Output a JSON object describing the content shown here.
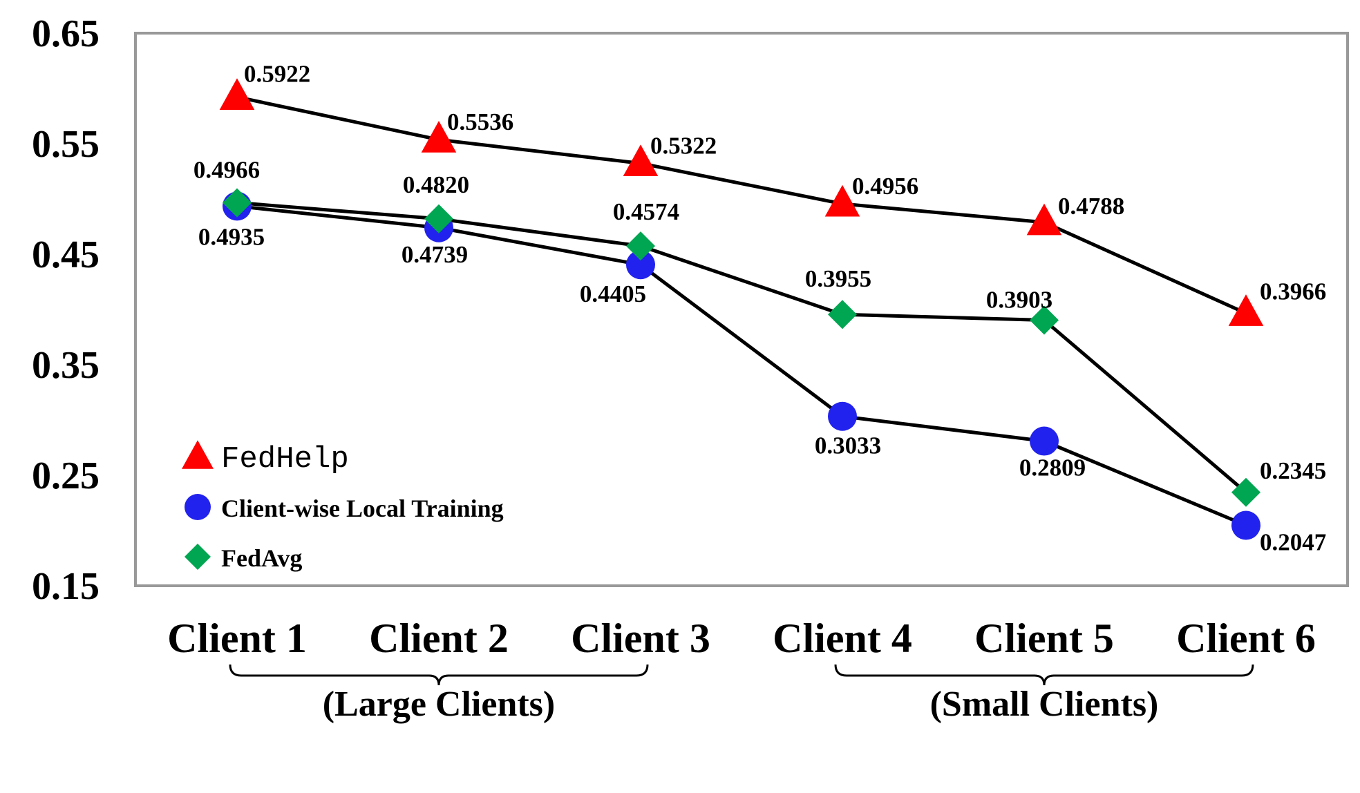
{
  "chart_data": {
    "type": "line",
    "categories": [
      "Client 1",
      "Client 2",
      "Client 3",
      "Client 4",
      "Client 5",
      "Client 6"
    ],
    "groups": [
      {
        "label": "(Large Clients)",
        "categories": [
          "Client 1",
          "Client 2",
          "Client 3"
        ]
      },
      {
        "label": "(Small Clients)",
        "categories": [
          "Client 4",
          "Client 5",
          "Client 6"
        ]
      }
    ],
    "yticks": [
      "0.65",
      "0.55",
      "0.45",
      "0.35",
      "0.25",
      "0.15"
    ],
    "ylim": [
      0.15,
      0.65
    ],
    "grid": false,
    "legend_position": "bottom-left",
    "series": [
      {
        "name": "FedHelp",
        "marker": "triangle",
        "color": "#ff0000",
        "values": [
          0.5922,
          0.5536,
          0.5322,
          0.4956,
          0.4788,
          0.3966
        ],
        "labels": [
          "0.5922",
          "0.5536",
          "0.5322",
          "0.4956",
          "0.4788",
          "0.3966"
        ]
      },
      {
        "name": "Client-wise Local Training",
        "marker": "circle",
        "color": "#2222ee",
        "values": [
          0.4935,
          0.4739,
          0.4405,
          0.3033,
          0.2809,
          0.2047
        ],
        "labels": [
          "0.4935",
          "0.4739",
          "0.4405",
          "0.3033",
          "0.2809",
          "0.2047"
        ]
      },
      {
        "name": "FedAvg",
        "marker": "diamond",
        "color": "#00a651",
        "values": [
          0.4966,
          0.482,
          0.4574,
          0.3955,
          0.3903,
          0.2345
        ],
        "labels": [
          "0.4966",
          "0.4820",
          "0.4574",
          "0.3955",
          "0.3903",
          "0.2345"
        ]
      }
    ]
  }
}
